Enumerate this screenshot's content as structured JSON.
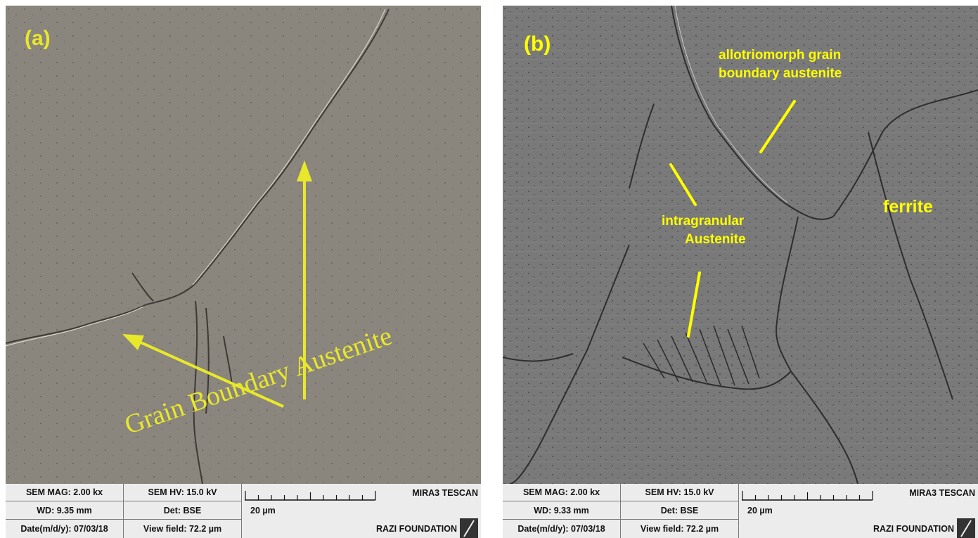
{
  "panels": [
    {
      "letter": "(a)",
      "annotation": "Grain Boundary Austenite",
      "databar": {
        "mag": "SEM MAG: 2.00 kx",
        "hv": "SEM HV: 15.0 kV",
        "wd": "WD: 9.35 mm",
        "det": "Det: BSE",
        "date": "Date(m/d/y): 07/03/18",
        "view_field": "View field: 72.2 µm",
        "scale": "20 µm",
        "instrument": "MIRA3 TESCAN",
        "facility": "RAZI FOUNDATION"
      }
    },
    {
      "letter": "(b)",
      "labels": {
        "allotriomorph": "allotriomorph grain",
        "allotriomorph2": "boundary austenite",
        "intragranular": "intragranular",
        "intragranular2": "Austenite",
        "ferrite": "ferrite"
      },
      "databar": {
        "mag": "SEM MAG: 2.00 kx",
        "hv": "SEM HV: 15.0 kV",
        "wd": "WD: 9.33 mm",
        "det": "Det: BSE",
        "date": "Date(m/d/y): 07/03/18",
        "view_field": "View field: 72.2 µm",
        "scale": "20 µm",
        "instrument": "MIRA3 TESCAN",
        "facility": "RAZI FOUNDATION"
      }
    }
  ],
  "colors": {
    "annotation_yellow": "#e8e82a",
    "label_yellow": "#ffff00"
  }
}
